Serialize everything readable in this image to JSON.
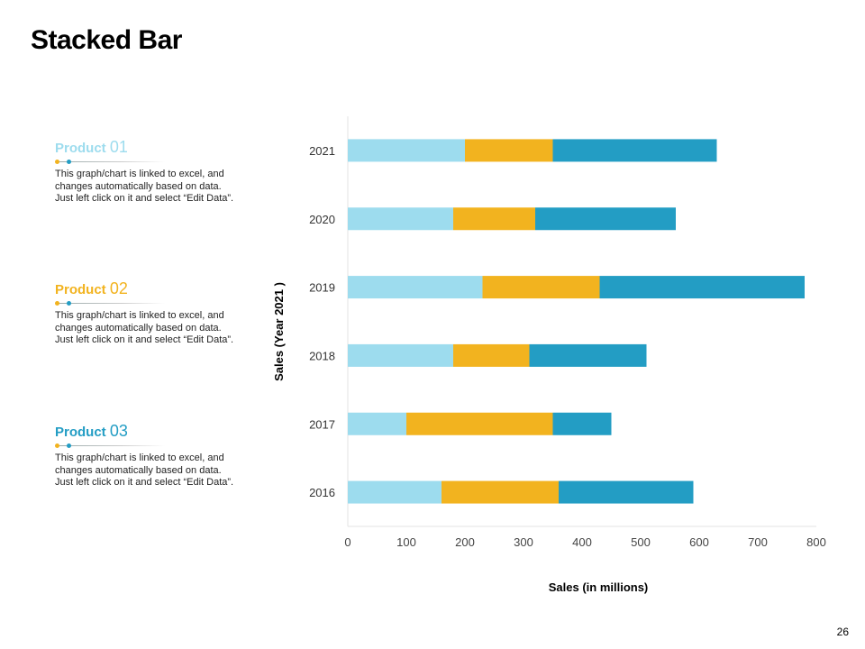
{
  "title": "Stacked Bar",
  "products": [
    {
      "label": "Product",
      "num": "01",
      "color": "#9ddcee",
      "text": "This graph/chart is linked to excel, and changes automatically based on data. Just left click on it and select “Edit Data”."
    },
    {
      "label": "Product",
      "num": "02",
      "color": "#f2b31f",
      "text": "This graph/chart is linked to excel, and changes automatically based on data. Just left click on it and select “Edit Data”."
    },
    {
      "label": "Product",
      "num": "03",
      "color": "#239dc4",
      "text": "This graph/chart is linked to excel, and changes automatically based on data. Just left click on it and select “Edit Data”."
    }
  ],
  "page_number": "26",
  "chart_data": {
    "type": "bar",
    "orientation": "horizontal",
    "stacked": true,
    "categories": [
      "2021",
      "2020",
      "2019",
      "2018",
      "2017",
      "2016"
    ],
    "series": [
      {
        "name": "Product 01",
        "color": "#9ddcee",
        "values": [
          200,
          180,
          230,
          180,
          100,
          160
        ]
      },
      {
        "name": "Product 02",
        "color": "#f2b31f",
        "values": [
          150,
          140,
          200,
          130,
          250,
          200
        ]
      },
      {
        "name": "Product 03",
        "color": "#239dc4",
        "values": [
          280,
          240,
          350,
          200,
          100,
          230
        ]
      }
    ],
    "xlabel": "Sales (in millions)",
    "ylabel": "Sales (Year 2021 )",
    "xlim": [
      0,
      800
    ],
    "xticks": [
      "0",
      "100",
      "200",
      "300",
      "400",
      "500",
      "600",
      "700",
      "800"
    ],
    "grid": false,
    "legend": "none"
  }
}
